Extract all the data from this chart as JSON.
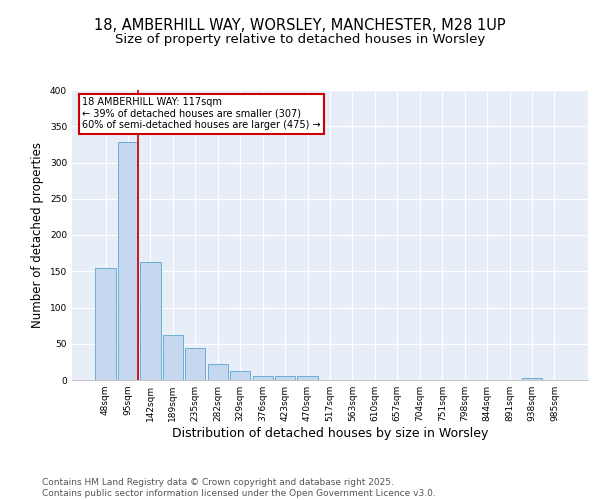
{
  "title1": "18, AMBERHILL WAY, WORSLEY, MANCHESTER, M28 1UP",
  "title2": "Size of property relative to detached houses in Worsley",
  "xlabel": "Distribution of detached houses by size in Worsley",
  "ylabel": "Number of detached properties",
  "categories": [
    "48sqm",
    "95sqm",
    "142sqm",
    "189sqm",
    "235sqm",
    "282sqm",
    "329sqm",
    "376sqm",
    "423sqm",
    "470sqm",
    "517sqm",
    "563sqm",
    "610sqm",
    "657sqm",
    "704sqm",
    "751sqm",
    "798sqm",
    "844sqm",
    "891sqm",
    "938sqm",
    "985sqm"
  ],
  "values": [
    155,
    328,
    163,
    62,
    44,
    22,
    12,
    5,
    5,
    5,
    0,
    0,
    0,
    0,
    0,
    0,
    0,
    0,
    0,
    3,
    0
  ],
  "bar_color": "#c5d8f0",
  "bar_edge_color": "#6baed6",
  "bar_edge_width": 0.7,
  "annotation_text": "18 AMBERHILL WAY: 117sqm\n← 39% of detached houses are smaller (307)\n60% of semi-detached houses are larger (475) →",
  "annotation_box_facecolor": "#ffffff",
  "annotation_box_edgecolor": "#cc0000",
  "ylim": [
    0,
    400
  ],
  "yticks": [
    0,
    50,
    100,
    150,
    200,
    250,
    300,
    350,
    400
  ],
  "bg_color": "#e8eef8",
  "grid_color": "#ffffff",
  "footer": "Contains HM Land Registry data © Crown copyright and database right 2025.\nContains public sector information licensed under the Open Government Licence v3.0.",
  "title_fontsize": 10.5,
  "subtitle_fontsize": 9.5,
  "tick_fontsize": 6.5,
  "ylabel_fontsize": 8.5,
  "xlabel_fontsize": 9,
  "annotation_fontsize": 7,
  "footer_fontsize": 6.5
}
